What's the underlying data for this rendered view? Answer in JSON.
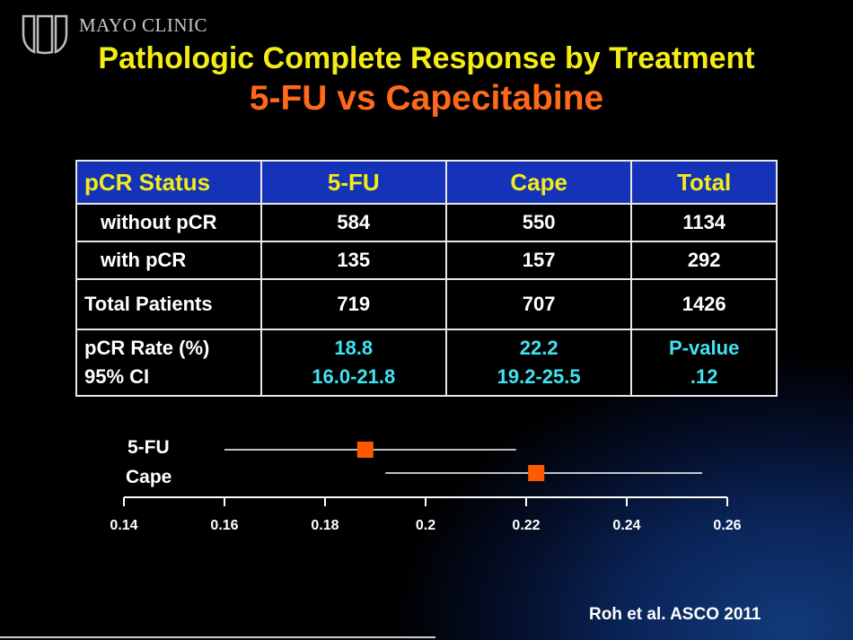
{
  "header": {
    "logo_text": "MAYO CLINIC",
    "title": "Pathologic Complete Response by Treatment",
    "subtitle": "5-FU vs Capecitabine"
  },
  "colors": {
    "title": "#f4ec16",
    "subtitle": "#ff6a1a",
    "table_header_bg": "#1533b8",
    "highlight_text": "#3fe3f2",
    "marker": "#ff5a00"
  },
  "table": {
    "headers": [
      "pCR Status",
      "5-FU",
      "Cape",
      "Total"
    ],
    "rows": [
      [
        "without pCR",
        "584",
        "550",
        "1134"
      ],
      [
        "with pCR",
        "135",
        "157",
        "292"
      ],
      [
        "Total Patients",
        "719",
        "707",
        "1426"
      ]
    ],
    "rate_row": {
      "label_line1": "pCR Rate (%)",
      "label_line2": "95% CI",
      "fu_line1": "18.8",
      "fu_line2": "16.0-21.8",
      "cape_line1": "22.2",
      "cape_line2": "19.2-25.5",
      "total_line1": "P-value",
      "total_line2": ".12"
    }
  },
  "chart_data": {
    "type": "scatter",
    "xlim": [
      0.14,
      0.26
    ],
    "ticks": [
      "0.14",
      "0.16",
      "0.18",
      "0.2",
      "0.22",
      "0.24",
      "0.26"
    ],
    "tick_values": [
      0.14,
      0.16,
      0.18,
      0.2,
      0.22,
      0.24,
      0.26
    ],
    "series": [
      {
        "name": "5-FU",
        "estimate": 0.188,
        "ci_low": 0.16,
        "ci_high": 0.218
      },
      {
        "name": "Cape",
        "estimate": 0.222,
        "ci_low": 0.192,
        "ci_high": 0.255
      }
    ]
  },
  "footer": {
    "citation": "Roh et al. ASCO 2011"
  }
}
